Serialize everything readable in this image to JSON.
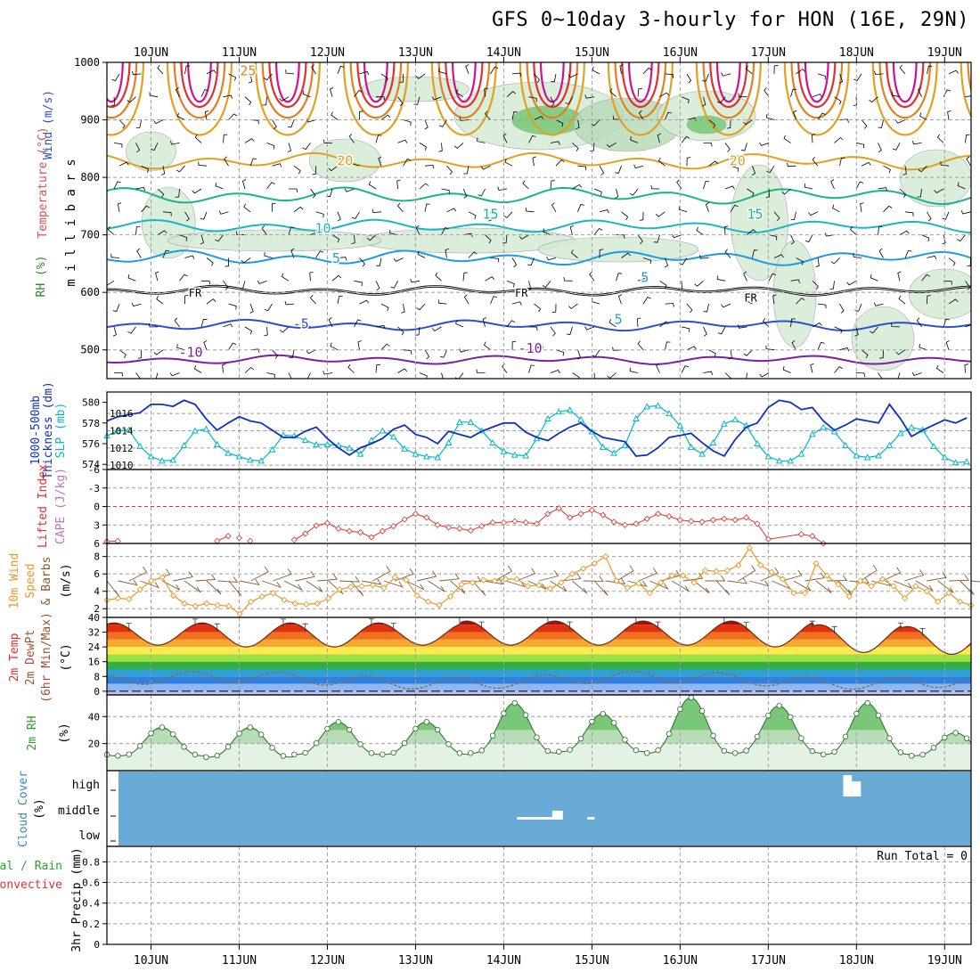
{
  "title": "GFS 0~10day 3-hourly for HON (16E, 29N)",
  "colors": {
    "rh_fill": "#d5ead5",
    "rh_fill2": "#b9dbb9",
    "rh_fill3": "#78c878",
    "temp_cold": "#7a1fa0",
    "temp_m5": "#2a4fd0",
    "temp_fr": "#000000",
    "temp_5": "#1e9be0",
    "temp_10": "#1cb5c4",
    "temp_15": "#19b48a",
    "temp_20": "#e0a020",
    "temp_25": "#e08020",
    "temp_30": "#e03030",
    "temp_35": "#d0108c",
    "slp": "#00b8c8",
    "thickness": "#1030c0",
    "lifted": "#e03030",
    "wind": "#e89828",
    "barb": "#8a5a30",
    "rh2m": "#2ea02e",
    "cloud": "#6aaad6",
    "grid": "#a0a0a0"
  },
  "chart_data": [
    {
      "id": "upper_air",
      "type": "contour",
      "ylabel": "m i l l i b a r s",
      "legend_labels": [
        "Wind (m/s)",
        "Temperature (°C)",
        "RH (%)"
      ],
      "yticks": [
        500,
        600,
        700,
        800,
        900,
        1000
      ],
      "ylim": [
        450,
        1000
      ],
      "x_dates": [
        "10JUN",
        "11JUN",
        "12JUN",
        "13JUN",
        "14JUN",
        "15JUN",
        "16JUN",
        "17JUN",
        "18JUN",
        "19JUN"
      ],
      "xlim": [
        9.5,
        19.3
      ],
      "isotherm_labels": [
        {
          "text": "-10",
          "x": 10.45,
          "p": 496
        },
        {
          "text": "-10",
          "x": 14.3,
          "p": 503
        },
        {
          "text": "-5",
          "x": 11.7,
          "p": 545
        },
        {
          "text": "5",
          "x": 15.3,
          "p": 553
        },
        {
          "text": "FR",
          "x": 10.5,
          "p": 600
        },
        {
          "text": "FR",
          "x": 14.2,
          "p": 600
        },
        {
          "text": "FR",
          "x": 16.8,
          "p": 592
        },
        {
          "text": "5",
          "x": 15.6,
          "p": 626
        },
        {
          "text": "5",
          "x": 12.1,
          "p": 659
        },
        {
          "text": "10",
          "x": 11.95,
          "p": 711
        },
        {
          "text": "15",
          "x": 13.85,
          "p": 736
        },
        {
          "text": "15",
          "x": 16.85,
          "p": 736
        },
        {
          "text": "20",
          "x": 12.2,
          "p": 829
        },
        {
          "text": "20",
          "x": 16.65,
          "p": 829
        },
        {
          "text": "25",
          "x": 11.1,
          "p": 985
        }
      ],
      "isotherms": [
        {
          "label": "-10",
          "colorKey": "temp_cold",
          "base": 483,
          "amp": 5
        },
        {
          "label": "-5",
          "colorKey": "temp_m5",
          "base": 543,
          "amp": 6
        },
        {
          "label": "FR",
          "colorKey": "temp_fr",
          "base": 603,
          "amp": 5
        },
        {
          "label": "5",
          "colorKey": "temp_5",
          "base": 660,
          "amp": 8
        },
        {
          "label": "10",
          "colorKey": "temp_10",
          "base": 715,
          "amp": 7
        },
        {
          "label": "15",
          "colorKey": "temp_15",
          "base": 768,
          "amp": 9
        },
        {
          "label": "20",
          "colorKey": "temp_20",
          "base": 828,
          "amp": 9
        }
      ]
    },
    {
      "id": "slp_thickness",
      "type": "line",
      "ylabel_left": "1000-500mb Thickness (dm)",
      "ylabel_right": "SLP (mb)",
      "yticks_left": [
        574,
        576,
        578,
        580
      ],
      "ylim_left": [
        573.5,
        581
      ],
      "yticks_right": [
        1010,
        1012,
        1014,
        1016
      ],
      "ylim_right": [
        1009.5,
        1018.5
      ],
      "x": [
        9.5,
        9.625,
        9.75,
        9.875,
        10,
        10.125,
        10.25,
        10.375,
        10.5,
        10.625,
        10.75,
        10.875,
        11,
        11.125,
        11.25,
        11.375,
        11.5,
        11.625,
        11.75,
        11.875,
        12,
        12.125,
        12.25,
        12.375,
        12.5,
        12.625,
        12.75,
        12.875,
        13,
        13.125,
        13.25,
        13.375,
        13.5,
        13.625,
        13.75,
        13.875,
        14,
        14.125,
        14.25,
        14.375,
        14.5,
        14.625,
        14.75,
        14.875,
        15,
        15.125,
        15.25,
        15.375,
        15.5,
        15.625,
        15.75,
        15.875,
        16,
        16.125,
        16.25,
        16.375,
        16.5,
        16.625,
        16.75,
        16.875,
        17,
        17.125,
        17.25,
        17.375,
        17.5,
        17.625,
        17.75,
        17.875,
        18,
        18.125,
        18.25,
        18.375,
        18.5,
        18.625,
        18.75,
        18.875,
        19,
        19.125,
        19.25
      ],
      "series": [
        {
          "name": "SLP",
          "axis": "right",
          "colorKey": "slp",
          "marker": "triangle",
          "values": [
            1013.4,
            1014.0,
            1014.1,
            1012.2,
            1011.0,
            1010.5,
            1010.6,
            1012.3,
            1014.0,
            1014.2,
            1012.4,
            1011.4,
            1011.0,
            1010.6,
            1010.5,
            1011.8,
            1013.5,
            1013.4,
            1012.9,
            1012.4,
            1012.4,
            1012.3,
            1012.0,
            1011.3,
            1012.9,
            1014.0,
            1013.3,
            1011.9,
            1011.3,
            1011.0,
            1010.9,
            1012.6,
            1015.0,
            1015.0,
            1014.0,
            1012.6,
            1011.6,
            1011.2,
            1011.1,
            1013.1,
            1015.4,
            1016.2,
            1016.4,
            1015.3,
            1013.9,
            1012.1,
            1011.4,
            1012.3,
            1015.4,
            1016.8,
            1016.9,
            1016.0,
            1014.6,
            1012.1,
            1011.3,
            1012.6,
            1014.8,
            1015.3,
            1014.6,
            1012.5,
            1011.0,
            1010.5,
            1010.5,
            1011.3,
            1013.6,
            1014.4,
            1013.9,
            1012.3,
            1011.1,
            1010.9,
            1011.1,
            1012.3,
            1013.7,
            1014.4,
            1014.1,
            1012.2,
            1010.9,
            1010.3,
            1010.4
          ]
        },
        {
          "name": "Thickness",
          "axis": "left",
          "colorKey": "thickness",
          "marker": "none",
          "values": [
            578.2,
            578.6,
            578.8,
            579.0,
            579.8,
            579.8,
            579.6,
            580.2,
            579.8,
            578.4,
            577.3,
            578.0,
            578.6,
            578.2,
            578.0,
            577.3,
            576.6,
            576.6,
            577.2,
            577.6,
            576.5,
            575.6,
            574.9,
            575.6,
            576.0,
            576.5,
            577.4,
            577.8,
            576.9,
            576.6,
            576.0,
            577.2,
            576.9,
            576.6,
            577.2,
            577.6,
            578.0,
            578.0,
            577.1,
            576.6,
            576.3,
            577.0,
            577.6,
            578.0,
            577.2,
            576.6,
            576.4,
            576.2,
            574.8,
            574.9,
            575.6,
            576.6,
            576.8,
            577.0,
            576.1,
            575.3,
            574.8,
            576.4,
            577.6,
            578.0,
            579.5,
            580.2,
            580.0,
            579.3,
            579.5,
            578.2,
            577.3,
            577.8,
            578.4,
            578.2,
            578.0,
            579.8,
            578.4,
            576.7,
            577.3,
            577.8,
            578.3,
            578.0,
            578.5
          ]
        }
      ]
    },
    {
      "id": "lifted_cape",
      "type": "line",
      "ylabel": "Lifted Index",
      "ylabel_right": "CAPE (J/kg)",
      "yticks": [
        -6,
        -3,
        0,
        3,
        6
      ],
      "ytick_labels": [
        "-6",
        "-3",
        "0",
        "3",
        "6"
      ],
      "ylim": [
        -6,
        6
      ],
      "reference_zero": true,
      "series": [
        {
          "name": "Lifted Index",
          "colorKey": "lifted",
          "marker": "diamond",
          "x": [
            9.5,
            9.625,
            10.75,
            10.875,
            11,
            11.125,
            11.625,
            11.75,
            11.875,
            12,
            12.125,
            12.25,
            12.375,
            12.5,
            12.625,
            12.75,
            12.875,
            13,
            13.125,
            13.25,
            13.375,
            13.5,
            13.625,
            13.75,
            13.875,
            14,
            14.125,
            14.25,
            14.375,
            14.5,
            14.625,
            14.75,
            14.875,
            15,
            15.125,
            15.25,
            15.375,
            15.5,
            15.625,
            15.75,
            15.875,
            16,
            16.125,
            16.25,
            16.375,
            16.5,
            16.625,
            16.75,
            16.875,
            17,
            17.375,
            17.5,
            17.625
          ],
          "values": [
            5.7,
            5.6,
            5.6,
            4.8,
            5.1,
            5.6,
            5.4,
            4.4,
            3.1,
            2.7,
            3.6,
            4.0,
            4.2,
            5.0,
            4.0,
            3.2,
            2.1,
            1.2,
            1.8,
            3.0,
            3.4,
            3.6,
            3.9,
            3.2,
            2.6,
            2.6,
            2.4,
            2.6,
            2.8,
            1.2,
            0.3,
            1.8,
            1.2,
            0.6,
            1.4,
            2.5,
            3.0,
            2.8,
            2.0,
            1.2,
            1.6,
            2.2,
            2.4,
            2.5,
            2.2,
            2.0,
            2.2,
            1.8,
            2.8,
            5.3,
            4.5,
            4.8,
            6.0
          ]
        }
      ]
    },
    {
      "id": "wind10m",
      "type": "line",
      "ylabel": "10m Wind Speed & Barbs (m/s)",
      "yticks": [
        2,
        4,
        6,
        8
      ],
      "ylim": [
        1,
        9.5
      ],
      "series": [
        {
          "name": "Speed",
          "colorKey": "wind",
          "marker": "diamond",
          "values": [
            3.0,
            3.2,
            3.1,
            4.2,
            5.2,
            5.6,
            3.5,
            2.6,
            2.3,
            2.6,
            2.4,
            2.3,
            1.4,
            2.8,
            3.4,
            3.8,
            3.0,
            2.6,
            2.5,
            2.6,
            3.2,
            4.2,
            4.5,
            4.6,
            4.7,
            4.4,
            5.6,
            5.3,
            3.5,
            2.8,
            2.4,
            3.4,
            4.8,
            5.0,
            5.3,
            5.2,
            5.4,
            5.4,
            4.6,
            4.7,
            4.3,
            5.0,
            6.0,
            6.6,
            7.2,
            8.0,
            5.2,
            4.4,
            4.9,
            3.8,
            5.0,
            5.8,
            5.8,
            5.0,
            6.4,
            6.3,
            6.4,
            7.0,
            9.0,
            7.0,
            6.2,
            5.4,
            3.8,
            3.8,
            7.2,
            5.8,
            4.8,
            3.4,
            5.2,
            4.6,
            5.4,
            4.6,
            3.2,
            4.6,
            4.0,
            2.8,
            3.8,
            2.8,
            2.4
          ]
        }
      ]
    },
    {
      "id": "temp2m",
      "type": "area",
      "ylabel": "2m Temp 2m DewPt (6hr Min/Max) (°C)",
      "yticks": [
        0,
        8,
        16,
        24,
        32,
        40
      ],
      "ylim": [
        -2,
        40
      ],
      "temp_max_per_day": [
        37,
        37,
        37,
        37,
        38,
        38,
        38,
        38,
        36,
        35
      ],
      "temp_min_per_day": [
        25,
        24,
        24,
        25,
        25,
        25,
        25,
        24,
        21,
        20
      ],
      "dewpoint_range": [
        2,
        13
      ]
    },
    {
      "id": "rh2m",
      "type": "area",
      "ylabel": "2m RH (%)",
      "yticks": [
        20,
        40
      ],
      "ylim": [
        0,
        56
      ],
      "peaks": [
        32,
        32,
        36,
        36,
        50,
        42,
        54,
        48,
        50,
        28
      ],
      "troughs": [
        11,
        10,
        12,
        12,
        13,
        14,
        13,
        13,
        12,
        11
      ]
    },
    {
      "id": "cloud",
      "type": "bar",
      "ylabel": "Cloud Cover (%)",
      "categories": [
        "high",
        "middle",
        "low"
      ],
      "features": [
        {
          "level": "high",
          "x_start": 17.85,
          "x_end": 18.05,
          "value": 100
        },
        {
          "level": "middle",
          "x_start": 14.15,
          "x_end": 14.85,
          "value": 15
        }
      ]
    },
    {
      "id": "precip",
      "type": "bar",
      "ylabel": "3hr Precip (mm)",
      "legend_labels": [
        "Total / Rain",
        "Convective"
      ],
      "yticks": [
        0,
        0.2,
        0.4,
        0.6,
        0.8
      ],
      "ylim": [
        0,
        0.95
      ],
      "run_total_label": "Run Total = 0",
      "values": []
    }
  ],
  "labels": {
    "upper_rh": "RH (%)",
    "upper_temp": "Temperature (°C)",
    "upper_wind": "Wind (m/s)",
    "upper_mb": "m i l l i b a r s",
    "thick1": "1000-500mb",
    "thick2": "Thickness (dm)",
    "slp": "SLP (mb)",
    "lifted": "Lifted Index",
    "cape": "CAPE (J/kg)",
    "wind1": "10m Wind",
    "wind2": "Speed",
    "wind3": "& Barbs",
    "wind_unit": "(m/s)",
    "t1": "2m Temp",
    "t2": "2m DewPt",
    "t3": "(6hr Min/Max)",
    "t_unit": "(°C)",
    "rh": "2m RH",
    "rh_unit": "(%)",
    "cc": "Cloud Cover",
    "cc_unit": "(%)",
    "pr1": "Total / Rain",
    "pr2": "Convective",
    "pr3": "3hr Precip (mm)"
  }
}
